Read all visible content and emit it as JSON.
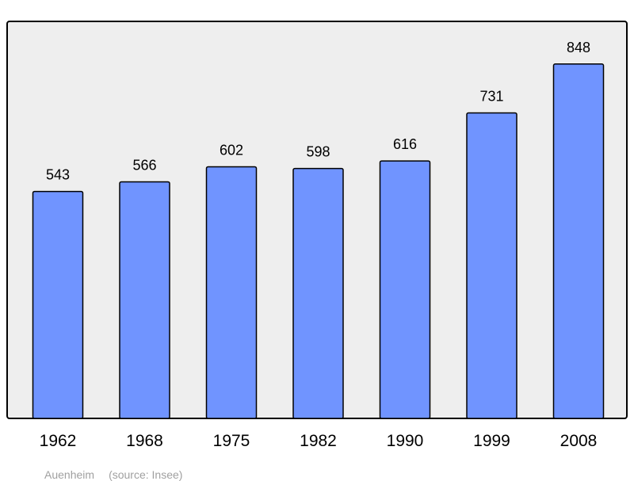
{
  "chart_data": {
    "type": "bar",
    "categories": [
      "1962",
      "1968",
      "1975",
      "1982",
      "1990",
      "1999",
      "2008"
    ],
    "values": [
      543,
      566,
      602,
      598,
      616,
      731,
      848
    ],
    "data_labels": [
      "543",
      "566",
      "602",
      "598",
      "616",
      "731",
      "848"
    ],
    "title": "",
    "xlabel": "",
    "ylabel": "",
    "ylim": [
      0,
      950
    ],
    "grid": false,
    "legend": "none",
    "colors": {
      "bar_fill": "#7094ff",
      "bar_stroke": "#000000",
      "plot_background": "#eeeeee",
      "plot_border": "#000000",
      "caption_text": "#a0a0a0"
    }
  },
  "caption": {
    "place": "Auenheim",
    "source": "(source: Insee)"
  }
}
